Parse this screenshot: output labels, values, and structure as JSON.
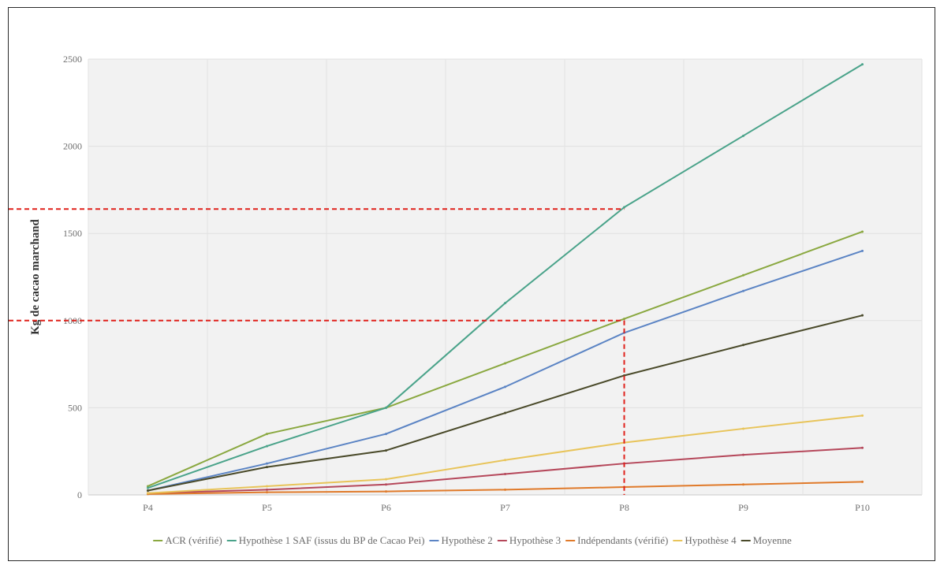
{
  "chart_data": {
    "type": "line",
    "title": "",
    "xlabel": "",
    "ylabel": "Kg de cacao marchand",
    "categories": [
      "P4",
      "P5",
      "P6",
      "P7",
      "P8",
      "P9",
      "P10"
    ],
    "ylim": [
      0,
      2500
    ],
    "yticks": [
      0,
      500,
      1000,
      1500,
      2000,
      2500
    ],
    "grid": true,
    "legend_position": "bottom",
    "series": [
      {
        "name": "ACR (vérifié)",
        "color": "#8aa840",
        "values": [
          50,
          350,
          500,
          755,
          1010,
          1260,
          1510
        ]
      },
      {
        "name": "Hypothèse 1 SAF (issus du BP de Cacao Pei)",
        "color": "#4aa38a",
        "values": [
          40,
          280,
          500,
          1100,
          1650,
          2060,
          2470
        ]
      },
      {
        "name": "Hypothèse 2",
        "color": "#5b84c4",
        "values": [
          25,
          180,
          350,
          620,
          930,
          1170,
          1400
        ]
      },
      {
        "name": "Hypothèse 3",
        "color": "#b5475a",
        "values": [
          10,
          30,
          60,
          120,
          180,
          230,
          270
        ]
      },
      {
        "name": "Indépendants (vérifié)",
        "color": "#e07a2a",
        "values": [
          5,
          15,
          20,
          30,
          45,
          60,
          75
        ]
      },
      {
        "name": "Hypothèse 4",
        "color": "#e8c45a",
        "values": [
          10,
          50,
          90,
          200,
          300,
          380,
          455
        ]
      },
      {
        "name": "Moyenne",
        "color": "#4a4a2a",
        "values": [
          25,
          160,
          255,
          470,
          685,
          860,
          1030
        ]
      }
    ],
    "annotations": [
      {
        "type": "dashed-line",
        "color": "#e0201a",
        "from": {
          "x": "P4",
          "y": 1640
        },
        "to": {
          "x": "P8",
          "y": 1640
        },
        "extends_past_axis": true
      },
      {
        "type": "dashed-line",
        "color": "#e0201a",
        "from": {
          "x": "P4",
          "y": 1000
        },
        "to": {
          "x": "P8",
          "y": 1000
        },
        "extends_past_axis": true
      },
      {
        "type": "dashed-line",
        "color": "#e0201a",
        "from": {
          "x": "P8",
          "y": 1000
        },
        "to": {
          "x": "P8",
          "y": 0
        }
      }
    ]
  }
}
